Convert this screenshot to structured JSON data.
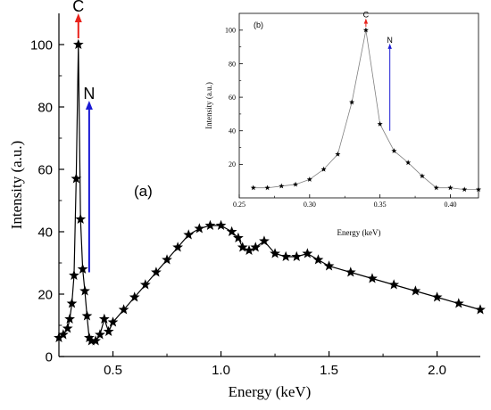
{
  "chart_data": [
    {
      "type": "scatter",
      "panel_label": "(a)",
      "xlabel": "Energy (keV)",
      "ylabel": "Intensity (a.u.)",
      "xlim": [
        0.25,
        2.2
      ],
      "ylim": [
        0,
        110
      ],
      "x_ticks": [
        0.5,
        1.0,
        1.5,
        2.0
      ],
      "x_tick_labels": [
        "0.5",
        "1.0",
        "1.5",
        "2.0"
      ],
      "y_ticks": [
        0,
        20,
        40,
        60,
        80,
        100
      ],
      "y_tick_labels": [
        "0",
        "20",
        "40",
        "60",
        "80",
        "100"
      ],
      "marker": "star",
      "line_color": "#000000",
      "arrow_labels": [
        {
          "label": "C",
          "x": 0.34,
          "y_start": 102,
          "y_end": 110,
          "color": "#e8211a"
        },
        {
          "label": "N",
          "x": 0.39,
          "y_start": 27,
          "y_end": 82,
          "color": "#1a1ad4"
        }
      ],
      "series": [
        {
          "x": [
            0.25,
            0.27,
            0.29,
            0.3,
            0.31,
            0.32,
            0.33,
            0.34,
            0.35,
            0.36,
            0.37,
            0.38,
            0.39,
            0.4,
            0.42,
            0.44,
            0.46,
            0.48,
            0.5,
            0.55,
            0.6,
            0.65,
            0.7,
            0.75,
            0.8,
            0.85,
            0.9,
            0.95,
            1.0,
            1.05,
            1.08,
            1.1,
            1.13,
            1.16,
            1.2,
            1.25,
            1.3,
            1.35,
            1.4,
            1.45,
            1.5,
            1.6,
            1.7,
            1.8,
            1.9,
            2.0,
            2.1,
            2.2
          ],
          "y": [
            6,
            7,
            9,
            12,
            17,
            26,
            57,
            100,
            44,
            28,
            21,
            13,
            6,
            5,
            5,
            7,
            12,
            8,
            11,
            15,
            19,
            23,
            27,
            31,
            35,
            39,
            41,
            42,
            42,
            40,
            38,
            35,
            34,
            35,
            37,
            33,
            32,
            32,
            33,
            31,
            29,
            27,
            25,
            23,
            21,
            19,
            17,
            15
          ]
        }
      ]
    },
    {
      "type": "line",
      "panel_label": "(b)",
      "xlabel": "Energy (keV)",
      "ylabel": "Intensity (a.u.)",
      "xlim": [
        0.25,
        0.42
      ],
      "ylim": [
        0,
        110
      ],
      "x_ticks": [
        0.25,
        0.3,
        0.35,
        0.4
      ],
      "x_tick_labels": [
        "0.25",
        "0.30",
        "0.35",
        "0.40"
      ],
      "y_ticks": [
        20,
        40,
        60,
        80,
        100
      ],
      "y_tick_labels": [
        "20",
        "40",
        "60",
        "80",
        "100"
      ],
      "marker": "star",
      "line_color": "#808080",
      "arrow_labels": [
        {
          "label": "C",
          "x": 0.34,
          "y_start": 102,
          "y_end": 107,
          "color": "#e8211a"
        },
        {
          "label": "N",
          "x": 0.357,
          "y_start": 40,
          "y_end": 92,
          "color": "#1a1ad4"
        }
      ],
      "series": [
        {
          "x": [
            0.26,
            0.27,
            0.28,
            0.29,
            0.3,
            0.31,
            0.32,
            0.33,
            0.34,
            0.35,
            0.36,
            0.37,
            0.38,
            0.39,
            0.4,
            0.41,
            0.42
          ],
          "y": [
            6,
            6,
            7,
            8,
            11,
            17,
            26,
            57,
            100,
            44,
            28,
            21,
            13,
            6,
            6,
            5,
            5
          ]
        }
      ]
    }
  ]
}
